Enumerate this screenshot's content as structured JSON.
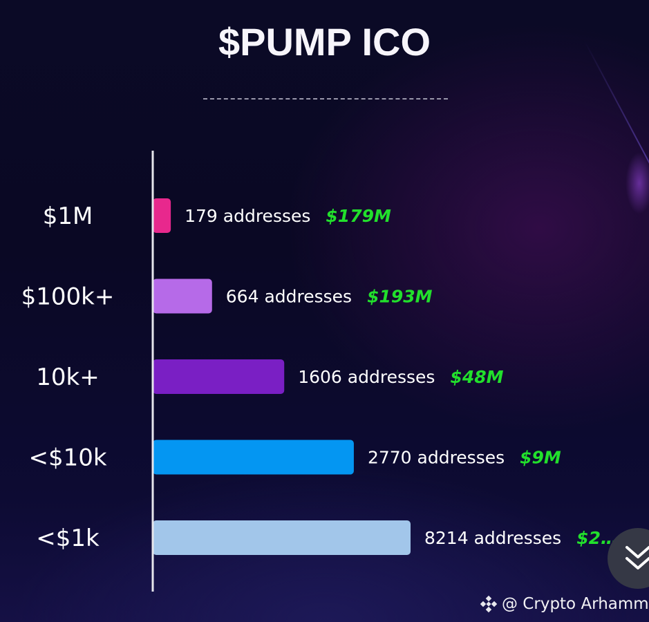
{
  "page": {
    "title": "$PUMP ICO",
    "watermark": "@ Crypto Arhamm",
    "icons": {
      "brand": "binance-diamond-icon",
      "scroll": "double-chevron-down-icon"
    }
  },
  "colors": {
    "value_text": "#22e02c",
    "axis": "#e6e6ec",
    "background": "#0b0a26"
  },
  "chart_data": {
    "type": "bar",
    "orientation": "horizontal",
    "title": "$PUMP ICO",
    "xlabel": "",
    "ylabel": "",
    "grid": false,
    "categories": [
      "$1M",
      "$100k+",
      "10k+",
      "<$10k",
      "<$1k"
    ],
    "series": [
      {
        "name": "addresses",
        "values": [
          179,
          664,
          1606,
          2770,
          8214
        ],
        "relative_bar_length": [
          0.07,
          0.23,
          0.51,
          0.78,
          1.0
        ]
      }
    ],
    "bar_labels": [
      "179 addresses",
      "664 addresses",
      "1606 addresses",
      "2770 addresses",
      "8214 addresses"
    ],
    "value_labels": [
      "$179M",
      "$193M",
      "$48M",
      "$9M",
      "$2…"
    ],
    "bar_colors": [
      "#e8288d",
      "#b66ae8",
      "#7a1fc4",
      "#0496f2",
      "#a2c6ea"
    ]
  }
}
